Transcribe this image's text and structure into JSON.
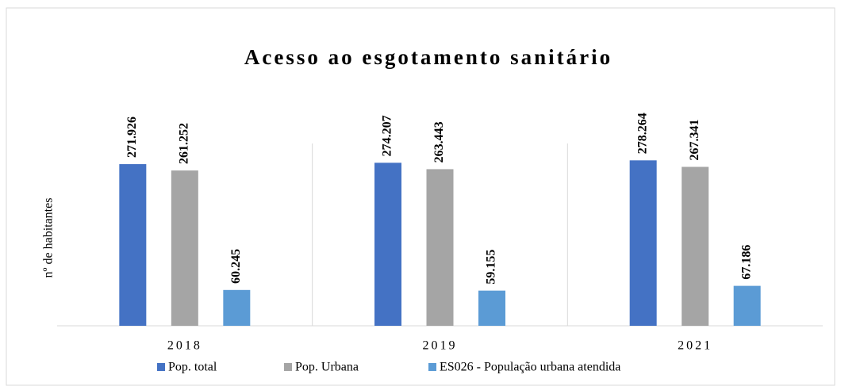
{
  "chart_data": {
    "type": "bar",
    "title": "Acesso ao esgotamento sanitário",
    "y_label": "nº de habitantes",
    "categories": [
      "2018",
      "2019",
      "2021"
    ],
    "series": [
      {
        "name": "Pop. total",
        "color": "#4472c4",
        "values": [
          271926,
          274207,
          278264
        ],
        "value_labels": [
          "271.926",
          "274.207",
          "278.264"
        ]
      },
      {
        "name": "Pop. Urbana",
        "color": "#a5a5a5",
        "values": [
          261252,
          263443,
          267341
        ],
        "value_labels": [
          "261.252",
          "263.443",
          "267.341"
        ]
      },
      {
        "name": "ES026 - População urbana atendida",
        "color": "#5b9bd5",
        "values": [
          60245,
          59155,
          67186
        ],
        "value_labels": [
          "60.245",
          "59.155",
          "67.186"
        ]
      }
    ],
    "ylim": [
      0,
      300000
    ],
    "legend": "bottom"
  }
}
